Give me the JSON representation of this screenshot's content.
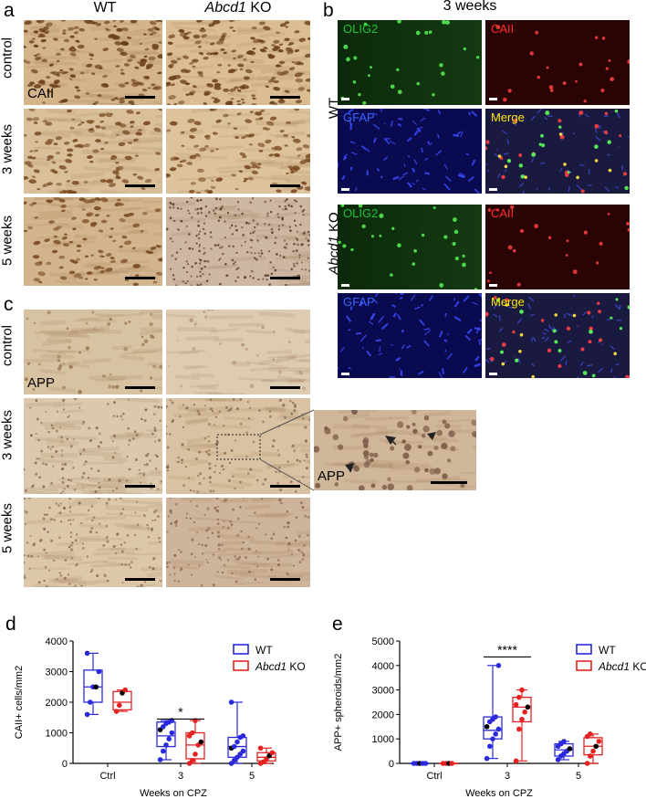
{
  "panels": {
    "a": {
      "letter": "a",
      "col_wt": "WT",
      "col_ko_gene": "Abcd1",
      "col_ko_suffix": " KO",
      "rows": [
        "control",
        "3 weeks",
        "5 weeks"
      ],
      "stain": "CAII"
    },
    "b": {
      "letter": "b",
      "title": "3 weeks",
      "row_wt": "WT",
      "row_ko_gene": "Abcd1",
      "row_ko_suffix": " KO",
      "channels": [
        "OLIG2",
        "CAII",
        "GFAP",
        "Merge"
      ],
      "channel_colors": {
        "OLIG2": "#22c23a",
        "CAII": "#ff2a2a",
        "GFAP": "#3a66ff",
        "Merge": "#ffe600"
      }
    },
    "c": {
      "letter": "c",
      "rows": [
        "control",
        "3 weeks",
        "5 weeks"
      ],
      "stain": "APP",
      "zoom_stain": "APP"
    },
    "d": {
      "letter": "d"
    },
    "e": {
      "letter": "e"
    }
  },
  "chart_data": [
    {
      "type": "box",
      "ylabel": "CAII+ cells/mm2",
      "xlabel": "Weeks on CPZ",
      "categories": [
        "Ctrl",
        "3",
        "5"
      ],
      "ylim": [
        0,
        4000
      ],
      "yticks": [
        "0",
        "1000",
        "2000",
        "3000",
        "4000"
      ],
      "legend": [
        {
          "name": "WT",
          "color": "#2a2adb"
        },
        {
          "name_gene": "Abcd1",
          "name_suffix": " KO",
          "color": "#e52222"
        }
      ],
      "significance": [
        {
          "category": "3",
          "label": "*"
        }
      ],
      "series": [
        {
          "name": "WT",
          "color": "#2a2adb",
          "box": [
            [
              1600,
              2000,
              2500,
              3050,
              3600
            ],
            [
              120,
              550,
              900,
              1350,
              1400
            ],
            [
              0,
              200,
              550,
              850,
              2000
            ]
          ],
          "points": [
            [
              1600,
              2000,
              2500,
              2500,
              3000,
              3600
            ],
            [
              120,
              400,
              600,
              800,
              1000,
              1100,
              1200,
              1300,
              1350,
              1400
            ],
            [
              0,
              100,
              200,
              300,
              400,
              500,
              550,
              700,
              850,
              900,
              2000
            ]
          ]
        },
        {
          "name": "Abcd1 KO",
          "color": "#e52222",
          "box": [
            [
              1700,
              1750,
              2000,
              2350,
              2400
            ],
            [
              0,
              150,
              600,
              1000,
              1400
            ],
            [
              0,
              80,
              200,
              350,
              500
            ]
          ],
          "points": [
            [
              1700,
              1900,
              2300,
              2400
            ],
            [
              0,
              100,
              300,
              600,
              700,
              900,
              1000,
              1400
            ],
            [
              0,
              50,
              150,
              250,
              350,
              500
            ]
          ]
        }
      ]
    },
    {
      "type": "box",
      "ylabel": "APP+ spheroids/mm2",
      "xlabel": "Weeks on CPZ",
      "categories": [
        "Ctrl",
        "3",
        "5"
      ],
      "ylim": [
        0,
        5000
      ],
      "yticks": [
        "0",
        "1000",
        "2000",
        "3000",
        "4000",
        "5000"
      ],
      "legend": [
        {
          "name": "WT",
          "color": "#2a2adb"
        },
        {
          "name_gene": "Abcd1",
          "name_suffix": " KO",
          "color": "#e52222"
        }
      ],
      "significance": [
        {
          "category": "3",
          "label": "****"
        }
      ],
      "series": [
        {
          "name": "WT",
          "color": "#2a2adb",
          "box": [
            [
              0,
              0,
              0,
              0,
              0
            ],
            [
              200,
              1000,
              1350,
              1900,
              4000
            ],
            [
              150,
              300,
              550,
              800,
              900
            ]
          ],
          "points": [
            [
              0,
              0,
              0,
              0,
              0
            ],
            [
              200,
              700,
              1000,
              1200,
              1400,
              1500,
              1700,
              1800,
              1900,
              4000
            ],
            [
              150,
              300,
              400,
              500,
              600,
              700,
              800,
              900
            ]
          ]
        },
        {
          "name": "Abcd1 KO",
          "color": "#e52222",
          "box": [
            [
              0,
              0,
              0,
              0,
              0
            ],
            [
              100,
              1700,
              2300,
              2700,
              3000
            ],
            [
              0,
              350,
              700,
              1050,
              1200
            ]
          ],
          "points": [
            [
              0,
              0,
              0,
              0
            ],
            [
              100,
              1400,
              1800,
              2100,
              2300,
              2400,
              2700,
              3000
            ],
            [
              0,
              300,
              500,
              700,
              900,
              1100,
              1200
            ]
          ]
        }
      ]
    }
  ]
}
